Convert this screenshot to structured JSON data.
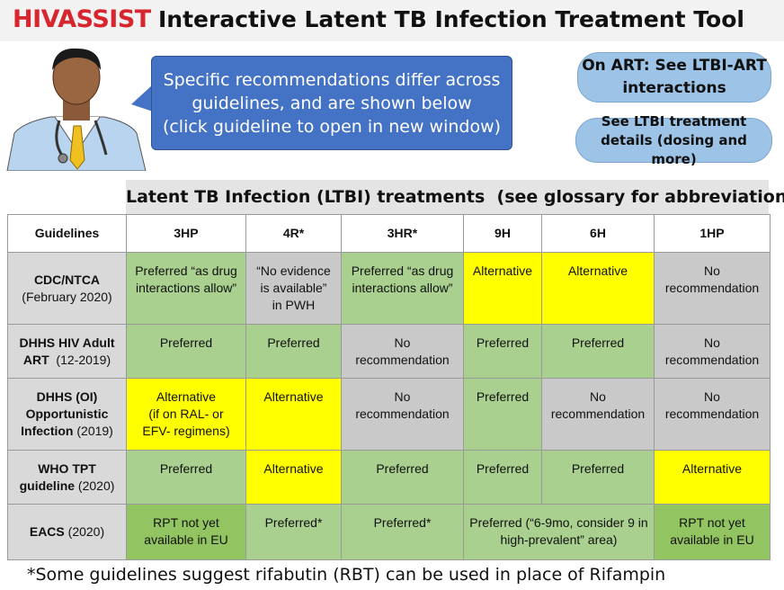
{
  "header": {
    "logo": "HIVASSIST",
    "title": "Interactive Latent TB Infection Treatment Tool"
  },
  "bubble": {
    "lines": [
      "Specific recommendations differ across",
      "guidelines, and are shown below",
      "(click guideline to open in new window)"
    ]
  },
  "buttons": [
    {
      "lines": [
        "On ART: See LTBI-ART",
        "interactions"
      ]
    },
    {
      "lines": [
        "See LTBI treatment",
        "details (dosing and more)"
      ]
    }
  ],
  "table": {
    "caption": "Latent TB Infection (LTBI) treatments  (see glossary for abbreviations)",
    "columns": [
      "Guidelines",
      "3HP",
      "4R*",
      "3HR*",
      "9H",
      "6H",
      "1HP"
    ],
    "rows": [
      {
        "guideline": [
          [
            {
              "text": "CDC/NTCA",
              "bold": true
            }
          ],
          [
            {
              "text": "(February 2020)",
              "bold": false
            }
          ]
        ],
        "cells": [
          {
            "lines": [
              "Preferred “as drug",
              "interactions allow”"
            ],
            "color": "#a9d08e"
          },
          {
            "lines": [
              "“No evidence",
              "is available”",
              "in PWH"
            ],
            "color": "#c9c9c9"
          },
          {
            "lines": [
              "Preferred “as drug",
              "interactions allow”"
            ],
            "color": "#a9d08e"
          },
          {
            "lines": [
              "Alternative"
            ],
            "color": "#ffff00"
          },
          {
            "lines": [
              "Alternative"
            ],
            "color": "#ffff00"
          },
          {
            "lines": [
              "No",
              "recommendation"
            ],
            "color": "#c9c9c9"
          }
        ]
      },
      {
        "guideline": [
          [
            {
              "text": "DHHS HIV Adult",
              "bold": true
            }
          ],
          [
            {
              "text": "ART",
              "bold": true
            },
            {
              "text": "  (12-2019)",
              "bold": false
            }
          ]
        ],
        "cells": [
          {
            "lines": [
              "Preferred"
            ],
            "color": "#a9d08e"
          },
          {
            "lines": [
              "Preferred"
            ],
            "color": "#a9d08e"
          },
          {
            "lines": [
              "No",
              "recommendation"
            ],
            "color": "#c9c9c9"
          },
          {
            "lines": [
              "Preferred"
            ],
            "color": "#a9d08e"
          },
          {
            "lines": [
              "Preferred"
            ],
            "color": "#a9d08e"
          },
          {
            "lines": [
              "No",
              "recommendation"
            ],
            "color": "#c9c9c9"
          }
        ]
      },
      {
        "guideline": [
          [
            {
              "text": "DHHS (OI)",
              "bold": true
            }
          ],
          [
            {
              "text": "Opportunistic",
              "bold": true
            }
          ],
          [
            {
              "text": "Infection",
              "bold": true
            },
            {
              "text": " (2019)",
              "bold": false
            }
          ]
        ],
        "cells": [
          {
            "lines": [
              "Alternative",
              "(if on RAL- or",
              "EFV- regimens)"
            ],
            "color": "#ffff00"
          },
          {
            "lines": [
              "Alternative"
            ],
            "color": "#ffff00"
          },
          {
            "lines": [
              "No",
              "recommendation"
            ],
            "color": "#c9c9c9"
          },
          {
            "lines": [
              "Preferred"
            ],
            "color": "#a9d08e"
          },
          {
            "lines": [
              "No",
              "recommendation"
            ],
            "color": "#c9c9c9"
          },
          {
            "lines": [
              "No",
              "recommendation"
            ],
            "color": "#c9c9c9"
          }
        ]
      },
      {
        "guideline": [
          [
            {
              "text": "WHO TPT",
              "bold": true
            }
          ],
          [
            {
              "text": "guideline",
              "bold": true
            },
            {
              "text": " (2020)",
              "bold": false
            }
          ]
        ],
        "cells": [
          {
            "lines": [
              "Preferred"
            ],
            "color": "#a9d08e"
          },
          {
            "lines": [
              "Alternative"
            ],
            "color": "#ffff00"
          },
          {
            "lines": [
              "Preferred"
            ],
            "color": "#a9d08e"
          },
          {
            "lines": [
              "Preferred"
            ],
            "color": "#a9d08e"
          },
          {
            "lines": [
              "Preferred"
            ],
            "color": "#a9d08e"
          },
          {
            "lines": [
              "Alternative"
            ],
            "color": "#ffff00"
          }
        ]
      },
      {
        "guideline": [
          [
            {
              "text": "EACS",
              "bold": true
            },
            {
              "text": " (2020)",
              "bold": false
            }
          ]
        ],
        "cells": [
          {
            "lines": [
              "RPT not yet",
              "available in EU"
            ],
            "color": "#92c461"
          },
          {
            "lines": [
              "Preferred*"
            ],
            "color": "#a9d08e"
          },
          {
            "lines": [
              "Preferred*"
            ],
            "color": "#a9d08e"
          },
          {
            "lines": [
              "Preferred (“6-9mo, consider 9 in",
              "high-prevalent” area)"
            ],
            "color": "#a9d08e",
            "colspan": 2
          },
          {
            "lines": [
              "RPT not yet",
              "available in EU"
            ],
            "color": "#92c461"
          }
        ]
      }
    ]
  },
  "footnote": "*Some guidelines suggest rifabutin (RBT) can be used in place of Rifampin"
}
